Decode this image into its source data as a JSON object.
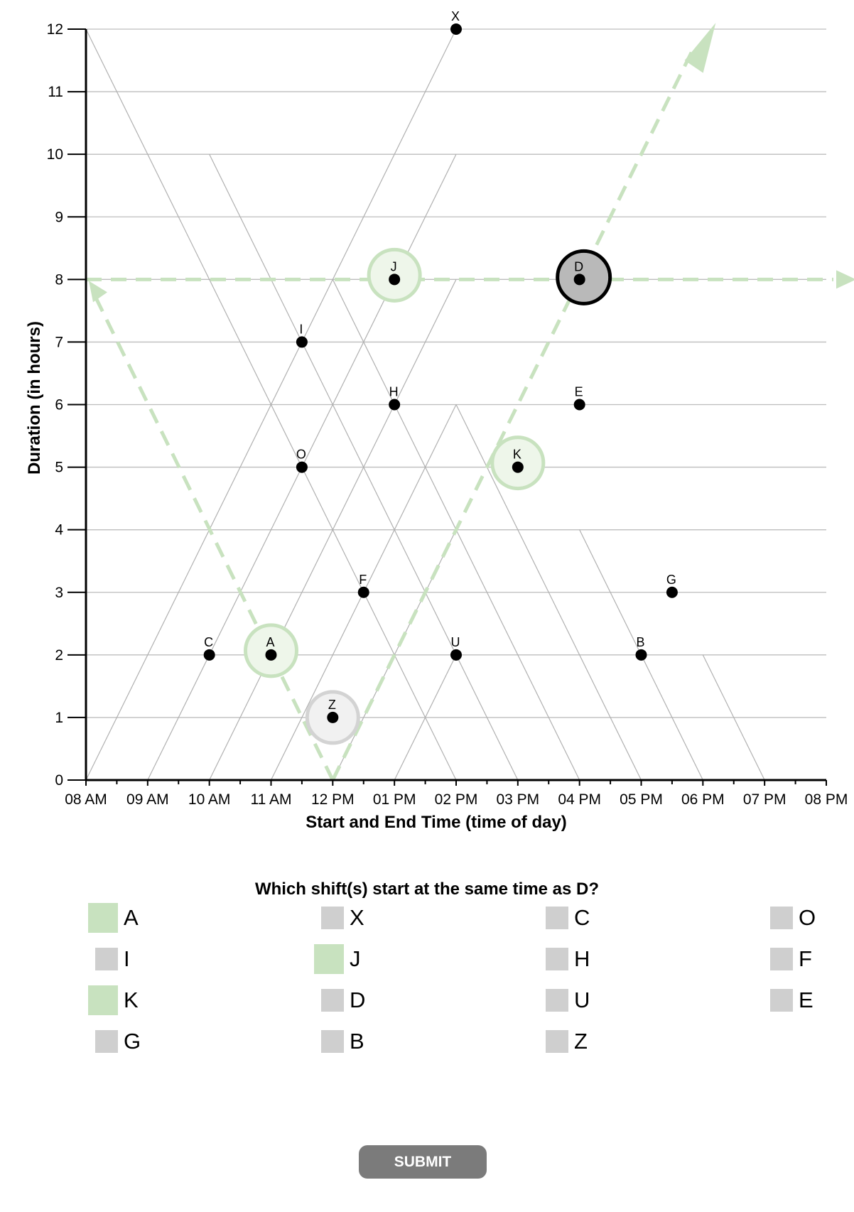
{
  "chart_data": {
    "type": "scatter",
    "xlabel": "Start and End Time (time of day)",
    "ylabel": "Duration (in hours)",
    "x_tick_labels": [
      "08 AM",
      "09 AM",
      "10 AM",
      "11 AM",
      "12 PM",
      "01 PM",
      "02 PM",
      "03 PM",
      "04 PM",
      "05 PM",
      "06 PM",
      "07 PM",
      "08 PM"
    ],
    "y_tick_labels": [
      "0",
      "1",
      "2",
      "3",
      "4",
      "5",
      "6",
      "7",
      "8",
      "9",
      "10",
      "11",
      "12"
    ],
    "xlim": [
      8,
      20
    ],
    "ylim": [
      0,
      12
    ],
    "grid": "triangular",
    "points": [
      {
        "label": "X",
        "x": 14,
        "y": 12
      },
      {
        "label": "J",
        "x": 13,
        "y": 8
      },
      {
        "label": "D",
        "x": 16,
        "y": 8
      },
      {
        "label": "I",
        "x": 11.5,
        "y": 7
      },
      {
        "label": "H",
        "x": 13,
        "y": 6
      },
      {
        "label": "E",
        "x": 16,
        "y": 6
      },
      {
        "label": "O",
        "x": 11.5,
        "y": 5
      },
      {
        "label": "K",
        "x": 15,
        "y": 5
      },
      {
        "label": "F",
        "x": 12.5,
        "y": 3
      },
      {
        "label": "G",
        "x": 17.5,
        "y": 3
      },
      {
        "label": "C",
        "x": 10,
        "y": 2
      },
      {
        "label": "A",
        "x": 11,
        "y": 2
      },
      {
        "label": "U",
        "x": 14,
        "y": 2
      },
      {
        "label": "B",
        "x": 17,
        "y": 2
      },
      {
        "label": "Z",
        "x": 12,
        "y": 1
      }
    ],
    "highlighted_selected": [
      "A",
      "J",
      "K"
    ],
    "highlighted_hover": "Z",
    "reference_point": "D",
    "guide_color": "#c8e2bf"
  },
  "question": "Which shift(s) start at the same time as D?",
  "options": [
    {
      "label": "A",
      "selected": true
    },
    {
      "label": "X",
      "selected": false
    },
    {
      "label": "C",
      "selected": false
    },
    {
      "label": "O",
      "selected": false
    },
    {
      "label": "I",
      "selected": false
    },
    {
      "label": "J",
      "selected": true
    },
    {
      "label": "H",
      "selected": false
    },
    {
      "label": "F",
      "selected": false
    },
    {
      "label": "K",
      "selected": true
    },
    {
      "label": "D",
      "selected": false
    },
    {
      "label": "U",
      "selected": false
    },
    {
      "label": "E",
      "selected": false
    },
    {
      "label": "G",
      "selected": false
    },
    {
      "label": "B",
      "selected": false
    },
    {
      "label": "Z",
      "selected": false
    }
  ],
  "submit_label": "SUBMIT"
}
